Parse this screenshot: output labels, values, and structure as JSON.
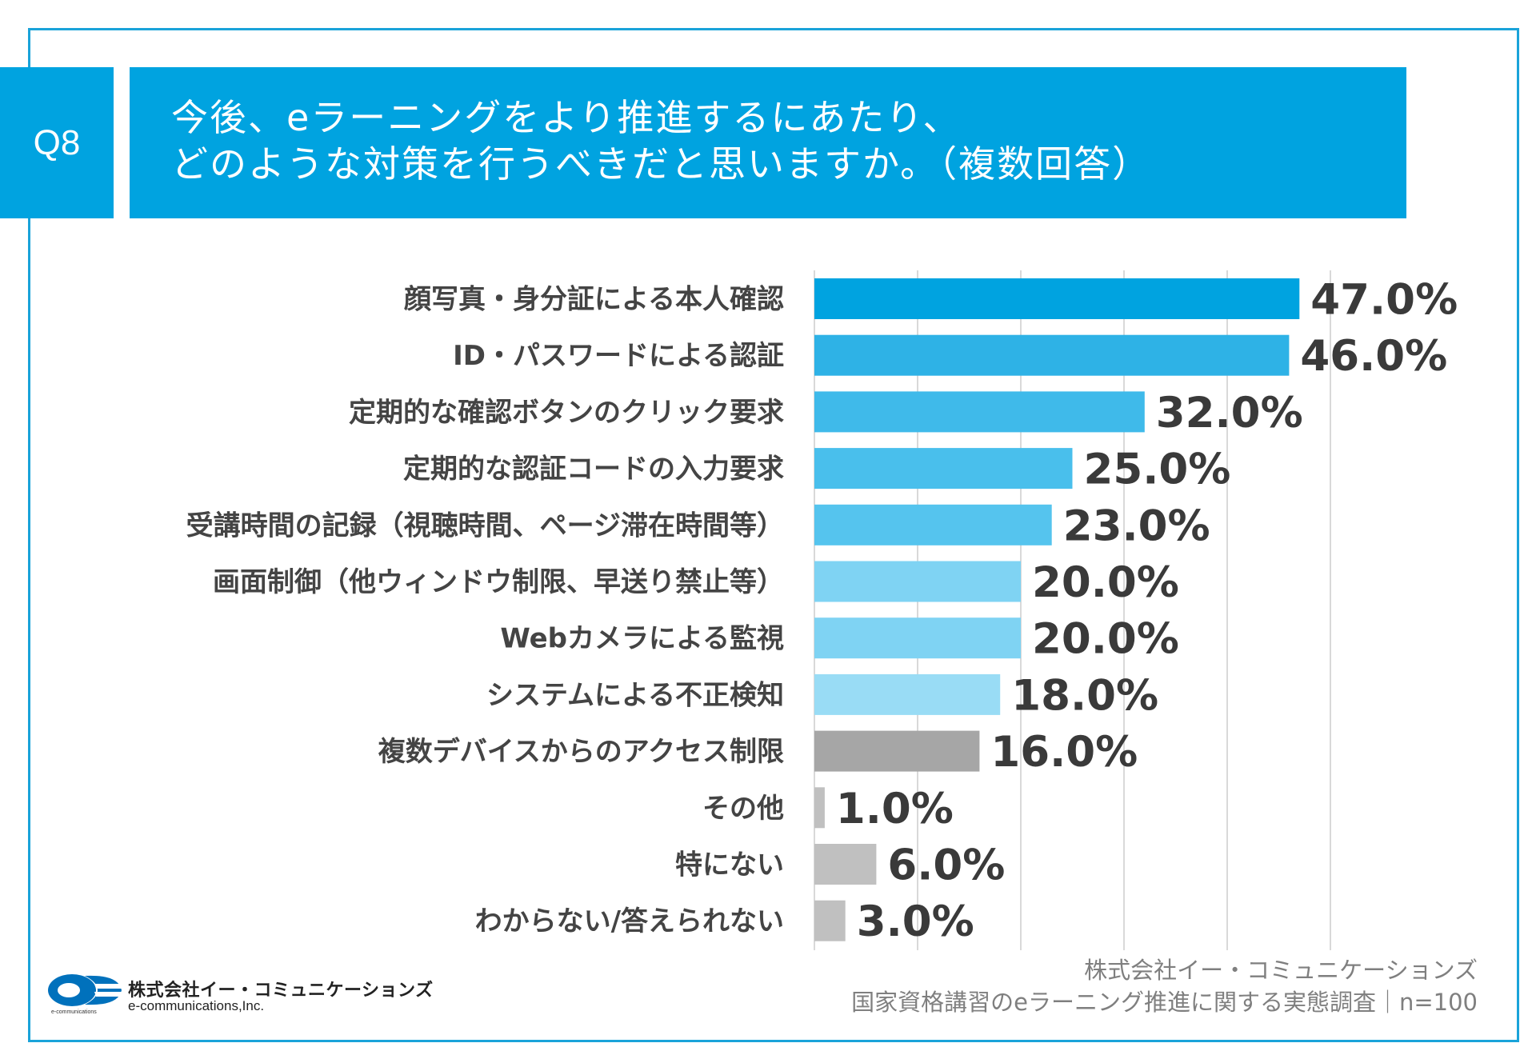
{
  "header": {
    "question_no": "Q8",
    "title_line1": "今後、eラーニングをより推進するにあたり、",
    "title_line2": "どのような対策を行うべきだと思いますか。（複数回答）"
  },
  "chart_data": {
    "type": "bar",
    "orientation": "horizontal",
    "xlim": [
      0,
      50
    ],
    "grid": true,
    "unit": "%",
    "categories": [
      "顔写真・身分証による本人確認",
      "ID・パスワードによる認証",
      "定期的な確認ボタンのクリック要求",
      "定期的な認証コードの入力要求",
      "受講時間の記録（視聴時間、ページ滞在時間等）",
      "画面制御（他ウィンドウ制限、早送り禁止等）",
      "Webカメラによる監視",
      "システムによる不正検知",
      "複数デバイスからのアクセス制限",
      "その他",
      "特にない",
      "わからない/答えられない"
    ],
    "values": [
      47.0,
      46.0,
      32.0,
      25.0,
      23.0,
      20.0,
      20.0,
      18.0,
      16.0,
      1.0,
      6.0,
      3.0
    ],
    "value_labels": [
      "47.0%",
      "46.0%",
      "32.0%",
      "25.0%",
      "23.0%",
      "20.0%",
      "20.0%",
      "18.0%",
      "16.0%",
      "1.0%",
      "6.0%",
      "3.0%"
    ],
    "colors": [
      "#00a3e0",
      "#2eb2e6",
      "#3fbaea",
      "#49bfec",
      "#55c4ee",
      "#7fd3f3",
      "#7fd3f3",
      "#99dcf5",
      "#a6a6a6",
      "#c0c0c0",
      "#c0c0c0",
      "#c0c0c0"
    ]
  },
  "footer": {
    "company_jp": "株式会社イー・コミュニケーションズ",
    "company_en": "e-communications,Inc.",
    "logo_tiny": "e-communications",
    "source_line1": "株式会社イー・コミュニケーションズ",
    "source_line2": "国家資格講習のeラーニング推進に関する実態調査｜n=100"
  }
}
